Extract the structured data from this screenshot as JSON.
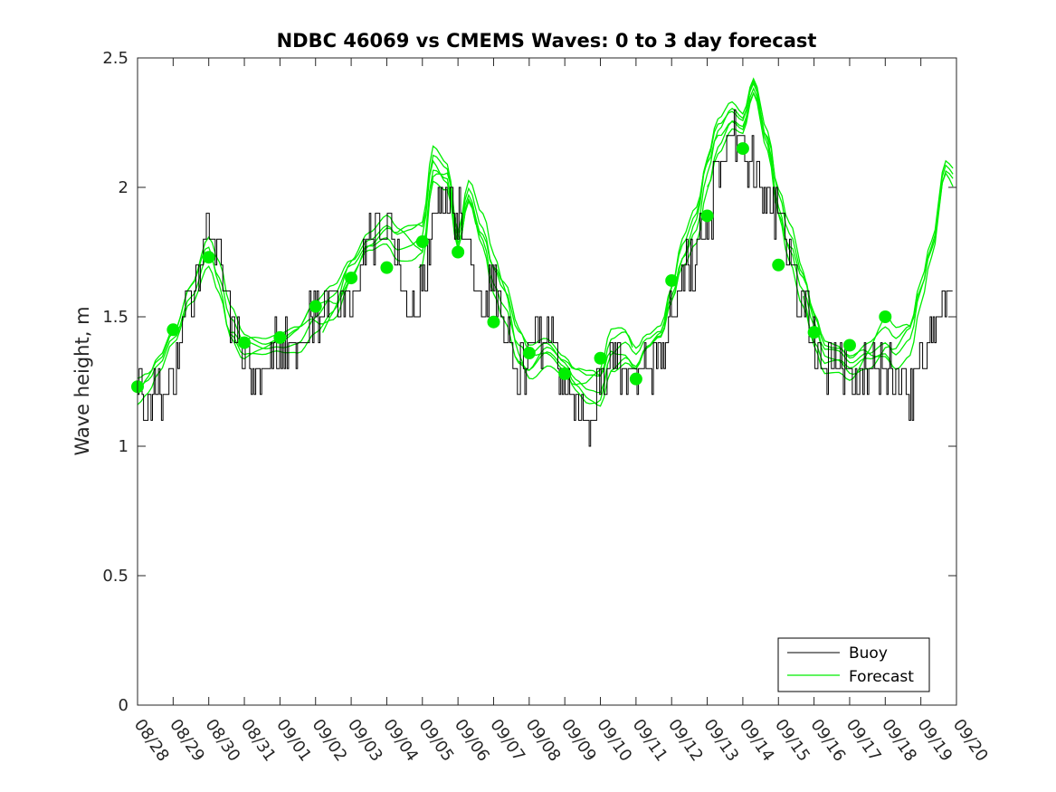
{
  "chart_data": {
    "type": "line",
    "title": "NDBC 46069 vs CMEMS Waves: 0 to 3 day forecast",
    "xlabel": "",
    "ylabel": "Wave height, m",
    "ylim": [
      0,
      2.5
    ],
    "yticks": [
      0,
      0.5,
      1,
      1.5,
      2,
      2.5
    ],
    "ytick_labels": [
      "0",
      "0.5",
      "1",
      "1.5",
      "2",
      "2.5"
    ],
    "x_days_range": [
      0,
      23
    ],
    "xtick_labels": [
      "08/28",
      "08/29",
      "08/30",
      "08/31",
      "09/01",
      "09/02",
      "09/03",
      "09/04",
      "09/05",
      "09/06",
      "09/07",
      "09/08",
      "09/09",
      "09/10",
      "09/11",
      "09/12",
      "09/13",
      "09/14",
      "09/15",
      "09/16",
      "09/17",
      "09/18",
      "09/19",
      "09/20"
    ],
    "grid": false,
    "legend": {
      "position": "bottom-right",
      "entries": [
        {
          "label": "Buoy",
          "color": "#000000"
        },
        {
          "label": "Forecast",
          "color": "#00ee00"
        }
      ]
    },
    "colors": {
      "buoy": "#000000",
      "forecast": "#00ee00",
      "dots": "#00ee00",
      "axis": "#262626"
    },
    "buoy_trend": {
      "x": [
        0,
        0.3,
        0.7,
        1,
        1.5,
        1.8,
        2,
        2.3,
        2.7,
        3,
        3.3,
        3.7,
        4,
        4.5,
        5,
        5.3,
        5.7,
        6,
        6.5,
        7,
        7.3,
        7.7,
        8,
        8.3,
        8.7,
        9,
        9.3,
        9.7,
        10,
        10.3,
        10.7,
        11,
        11.5,
        12,
        12.3,
        12.7,
        13,
        13.3,
        13.7,
        14,
        14.3,
        14.7,
        15,
        15.5,
        16,
        16.3,
        16.7,
        17,
        17.3,
        17.7,
        18,
        18.3,
        18.7,
        19,
        19.3,
        19.7,
        20,
        20.5,
        21,
        21.3,
        21.7,
        22,
        22.5,
        22.9
      ],
      "y": [
        1.2,
        1.15,
        1.2,
        1.3,
        1.6,
        1.7,
        1.85,
        1.7,
        1.5,
        1.35,
        1.3,
        1.35,
        1.4,
        1.4,
        1.5,
        1.55,
        1.55,
        1.55,
        1.8,
        1.85,
        1.7,
        1.55,
        1.6,
        1.85,
        1.95,
        1.9,
        1.75,
        1.55,
        1.6,
        1.45,
        1.3,
        1.35,
        1.45,
        1.25,
        1.15,
        1.1,
        1.25,
        1.35,
        1.3,
        1.25,
        1.3,
        1.35,
        1.55,
        1.7,
        1.85,
        2.05,
        2.2,
        2.15,
        2.1,
        1.95,
        1.9,
        1.7,
        1.55,
        1.4,
        1.3,
        1.35,
        1.25,
        1.3,
        1.3,
        1.25,
        1.2,
        1.3,
        1.5,
        1.65
      ]
    },
    "buoy_noise": 0.09,
    "forecast_base": {
      "x": [
        0,
        0.3,
        0.6,
        1,
        1.5,
        2,
        2.3,
        2.6,
        3,
        3.5,
        4,
        4.5,
        5,
        5.5,
        6,
        6.5,
        7,
        7.3,
        7.7,
        8,
        8.3,
        8.7,
        9,
        9.3,
        9.7,
        10,
        10.3,
        10.7,
        11,
        11.5,
        12,
        12.3,
        12.7,
        13,
        13.3,
        13.7,
        14,
        14.3,
        14.7,
        15,
        15.3,
        15.7,
        16,
        16.3,
        16.7,
        17,
        17.3,
        17.7,
        18,
        18.3,
        18.7,
        19,
        19.3,
        19.7,
        20,
        20.5,
        21,
        21.3,
        21.7,
        22,
        22.3,
        22.7,
        23
      ],
      "y": [
        1.2,
        1.23,
        1.3,
        1.42,
        1.6,
        1.76,
        1.65,
        1.48,
        1.38,
        1.37,
        1.4,
        1.42,
        1.5,
        1.56,
        1.68,
        1.78,
        1.83,
        1.78,
        1.78,
        1.8,
        2.1,
        2.05,
        1.8,
        1.98,
        1.82,
        1.65,
        1.55,
        1.38,
        1.33,
        1.38,
        1.33,
        1.28,
        1.24,
        1.22,
        1.35,
        1.38,
        1.33,
        1.4,
        1.45,
        1.6,
        1.75,
        1.85,
        2.05,
        2.2,
        2.28,
        2.25,
        2.4,
        2.2,
        1.95,
        1.78,
        1.6,
        1.45,
        1.35,
        1.35,
        1.32,
        1.38,
        1.42,
        1.36,
        1.4,
        1.58,
        1.75,
        2.08,
        2.05
      ]
    },
    "forecast_runs": 8,
    "daily_forecast_dots": {
      "x": [
        0,
        1,
        2,
        3,
        4,
        5,
        6,
        7,
        8,
        9,
        10,
        11,
        12,
        13,
        14,
        15,
        16,
        17,
        18,
        19,
        20,
        21
      ],
      "y": [
        1.23,
        1.45,
        1.73,
        1.4,
        1.42,
        1.54,
        1.65,
        1.69,
        1.79,
        1.75,
        1.48,
        1.36,
        1.28,
        1.34,
        1.26,
        1.64,
        1.89,
        2.15,
        1.7,
        1.44,
        1.39,
        1.5
      ]
    }
  }
}
